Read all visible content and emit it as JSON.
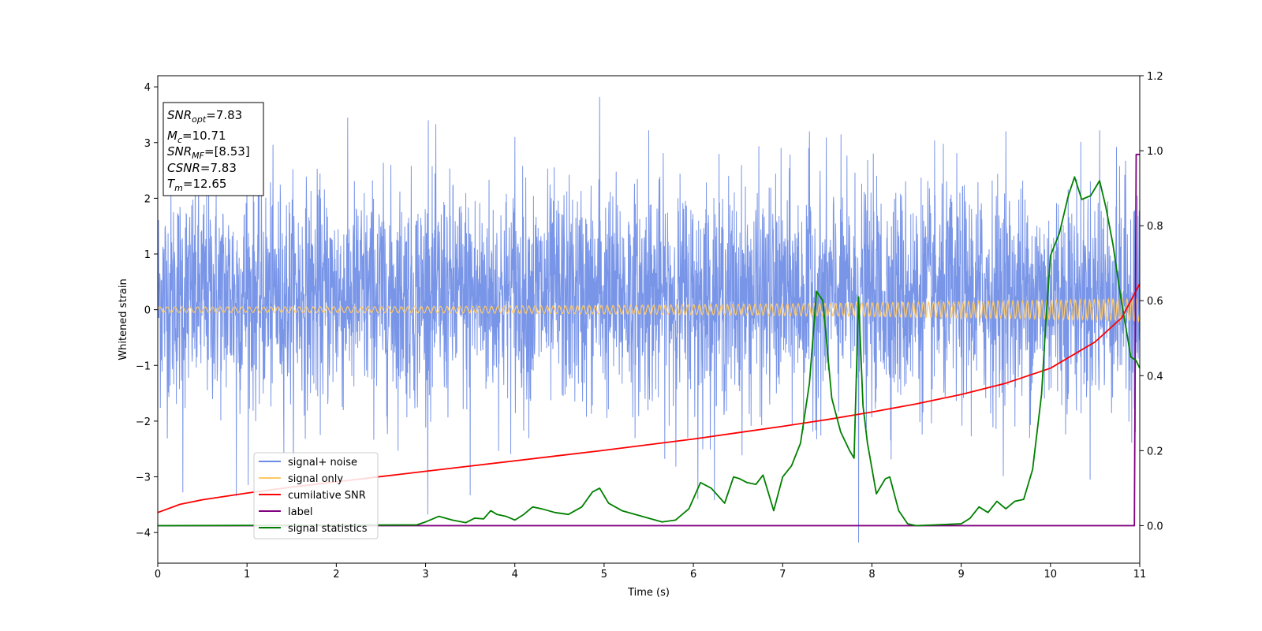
{
  "chart_data": {
    "type": "line",
    "xlabel": "Time (s)",
    "ylabel": "Whitened strain",
    "xlim": [
      0,
      11
    ],
    "ylim_left": [
      -4.55,
      4.2
    ],
    "ylim_right": [
      -0.1,
      1.2
    ],
    "x_ticks": [
      0,
      1,
      2,
      3,
      4,
      5,
      6,
      7,
      8,
      9,
      10,
      11
    ],
    "y_ticks_left": [
      -4,
      -3,
      -2,
      -1,
      0,
      1,
      2,
      3,
      4
    ],
    "y_ticks_right": [
      0.0,
      0.2,
      0.4,
      0.6,
      0.8,
      1.0,
      1.2
    ],
    "grid": false,
    "legend_position": "lower-left",
    "annotation": {
      "lines": [
        {
          "base": "SNR",
          "sub": "opt",
          "rest": "=7.83"
        },
        {
          "base": "M",
          "sub": "c",
          "rest": "=10.71"
        },
        {
          "base": "SNR",
          "sub": "MF",
          "rest": "=[8.53]"
        },
        {
          "base": "CSNR",
          "sub": "",
          "rest": "=7.83"
        },
        {
          "base": "T",
          "sub": "m",
          "rest": "=12.65"
        }
      ]
    },
    "series": [
      {
        "name": "signal+ noise",
        "axis": "left",
        "color": "#6a8ae6",
        "kind": "noise",
        "typical_range": [
          -1.8,
          2.3
        ],
        "notable_peaks": [
          [
            1.0,
            2.56
          ],
          [
            3.03,
            3.4
          ],
          [
            4.0,
            3.1
          ],
          [
            4.95,
            3.82
          ],
          [
            5.5,
            3.22
          ],
          [
            7.3,
            3.2
          ],
          [
            9.5,
            3.2
          ],
          [
            10.55,
            3.22
          ]
        ],
        "notable_troughs": [
          [
            0.28,
            -3.28
          ],
          [
            0.88,
            -3.35
          ],
          [
            3.5,
            -3.33
          ],
          [
            6.05,
            -3.4
          ],
          [
            7.85,
            -4.18
          ],
          [
            10.95,
            -2.2
          ]
        ]
      },
      {
        "name": "signal only",
        "axis": "left",
        "color": "#ffc966",
        "kind": "chirp",
        "amplitude_start": 0.05,
        "amplitude_end": 0.2,
        "cycles": 170
      },
      {
        "name": "cumilative SNR",
        "axis": "right",
        "color": "#ff0000",
        "x": [
          0,
          0.25,
          0.5,
          1,
          1.5,
          2,
          2.5,
          3,
          3.5,
          4,
          4.5,
          5,
          5.5,
          6,
          6.5,
          7,
          7.5,
          8,
          8.5,
          9,
          9.5,
          10,
          10.5,
          10.8,
          11
        ],
        "values": [
          0.035,
          0.057,
          0.069,
          0.087,
          0.103,
          0.117,
          0.131,
          0.145,
          0.159,
          0.173,
          0.187,
          0.201,
          0.216,
          0.231,
          0.248,
          0.265,
          0.283,
          0.303,
          0.325,
          0.35,
          0.38,
          0.42,
          0.49,
          0.555,
          0.645
        ]
      },
      {
        "name": "label",
        "axis": "right",
        "color": "#800080",
        "x": [
          0,
          10.94,
          10.96,
          11
        ],
        "values": [
          0,
          0,
          0.99,
          0.99
        ]
      },
      {
        "name": "signal statistics",
        "axis": "right",
        "color": "#008000",
        "x": [
          0,
          2.9,
          3.0,
          3.15,
          3.3,
          3.45,
          3.55,
          3.65,
          3.73,
          3.8,
          3.9,
          4.0,
          4.1,
          4.2,
          4.3,
          4.45,
          4.6,
          4.75,
          4.87,
          4.95,
          5.05,
          5.2,
          5.35,
          5.5,
          5.65,
          5.8,
          5.95,
          6.08,
          6.2,
          6.35,
          6.45,
          6.52,
          6.6,
          6.7,
          6.78,
          6.9,
          7.0,
          7.1,
          7.2,
          7.3,
          7.38,
          7.45,
          7.55,
          7.65,
          7.75,
          7.8,
          7.85,
          7.9,
          7.95,
          8.05,
          8.15,
          8.2,
          8.3,
          8.4,
          8.5,
          8.7,
          9.0,
          9.1,
          9.2,
          9.3,
          9.4,
          9.5,
          9.6,
          9.7,
          9.8,
          9.9,
          9.95,
          10.0,
          10.1,
          10.2,
          10.27,
          10.35,
          10.45,
          10.55,
          10.62,
          10.7,
          10.78,
          10.9,
          10.96,
          11.0
        ],
        "values": [
          0.0,
          0.002,
          0.01,
          0.025,
          0.015,
          0.008,
          0.02,
          0.018,
          0.04,
          0.03,
          0.025,
          0.015,
          0.03,
          0.05,
          0.045,
          0.035,
          0.03,
          0.05,
          0.09,
          0.1,
          0.06,
          0.04,
          0.03,
          0.02,
          0.01,
          0.015,
          0.045,
          0.115,
          0.1,
          0.06,
          0.13,
          0.125,
          0.115,
          0.11,
          0.135,
          0.04,
          0.13,
          0.16,
          0.22,
          0.38,
          0.625,
          0.6,
          0.34,
          0.25,
          0.2,
          0.18,
          0.61,
          0.32,
          0.22,
          0.085,
          0.125,
          0.13,
          0.04,
          0.005,
          0.0,
          0.002,
          0.005,
          0.02,
          0.05,
          0.035,
          0.065,
          0.045,
          0.065,
          0.07,
          0.15,
          0.35,
          0.55,
          0.72,
          0.78,
          0.88,
          0.93,
          0.87,
          0.88,
          0.92,
          0.85,
          0.75,
          0.62,
          0.45,
          0.44,
          0.42
        ]
      }
    ]
  }
}
